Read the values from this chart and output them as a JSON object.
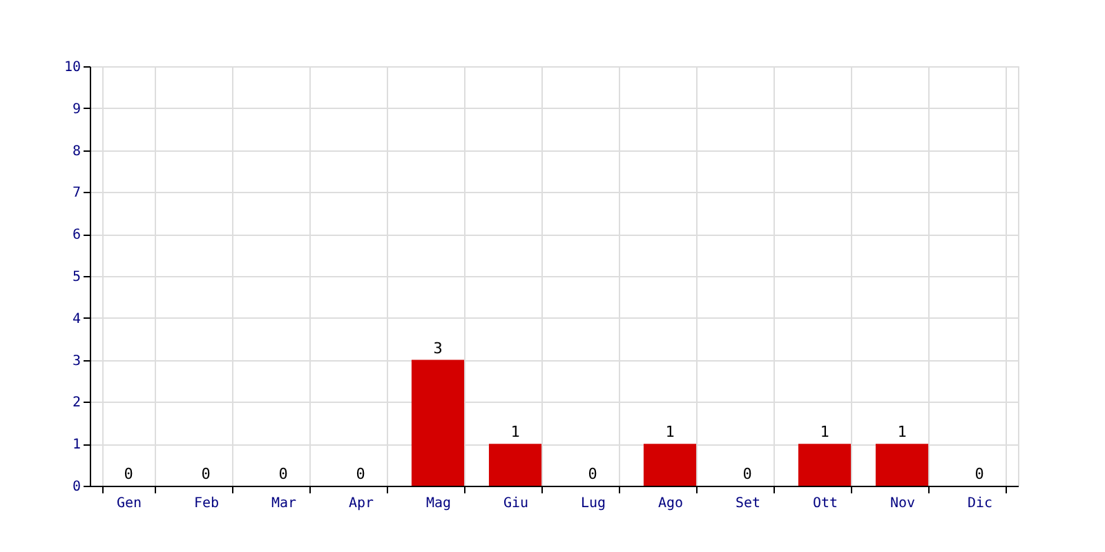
{
  "chart_data": {
    "type": "bar",
    "categories": [
      "Gen",
      "Feb",
      "Mar",
      "Apr",
      "Mag",
      "Giu",
      "Lug",
      "Ago",
      "Set",
      "Ott",
      "Nov",
      "Dic"
    ],
    "values": [
      0,
      0,
      0,
      0,
      3,
      1,
      0,
      1,
      0,
      1,
      1,
      0
    ],
    "color": "#d40000",
    "ylim": [
      0,
      10
    ],
    "yticks": [
      0,
      1,
      2,
      3,
      4,
      5,
      6,
      7,
      8,
      9,
      10
    ],
    "grid": true,
    "data_labels": true
  }
}
